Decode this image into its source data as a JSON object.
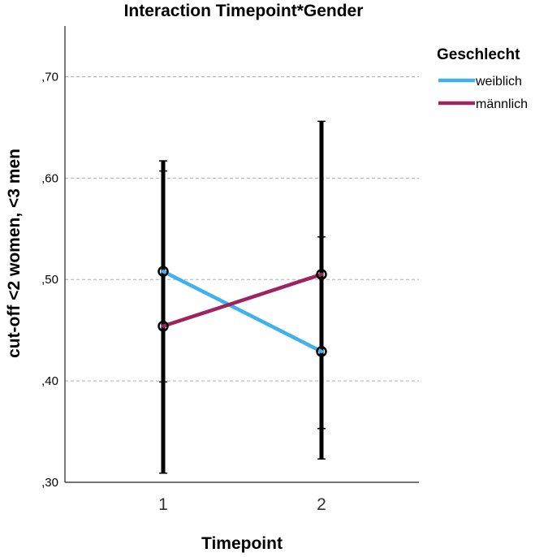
{
  "chart_data": {
    "type": "line",
    "title": "Interaction Timepoint*Gender",
    "xlabel": "Timepoint",
    "ylabel": "cut-off <2 women, <3 men",
    "categories": [
      "1",
      "2"
    ],
    "ylim": [
      0.3,
      0.75
    ],
    "yticks": [
      0.3,
      0.4,
      0.5,
      0.6,
      0.7
    ],
    "ytick_labels": [
      ",30",
      ",40",
      ",50",
      ",60",
      ",70"
    ],
    "grid": "horizontal-dashed",
    "legend": {
      "title": "Geschlecht",
      "placement": "right"
    },
    "series": [
      {
        "name": "weiblich",
        "color": "#3fb1ec",
        "values": [
          0.508,
          0.429
        ],
        "error_low": [
          0.399,
          0.353
        ],
        "error_high": [
          0.617,
          0.656
        ]
      },
      {
        "name": "männlich",
        "color": "#9e2460",
        "values": [
          0.454,
          0.505
        ],
        "error_low": [
          0.309,
          0.323
        ],
        "error_high": [
          0.607,
          0.542
        ]
      }
    ]
  }
}
